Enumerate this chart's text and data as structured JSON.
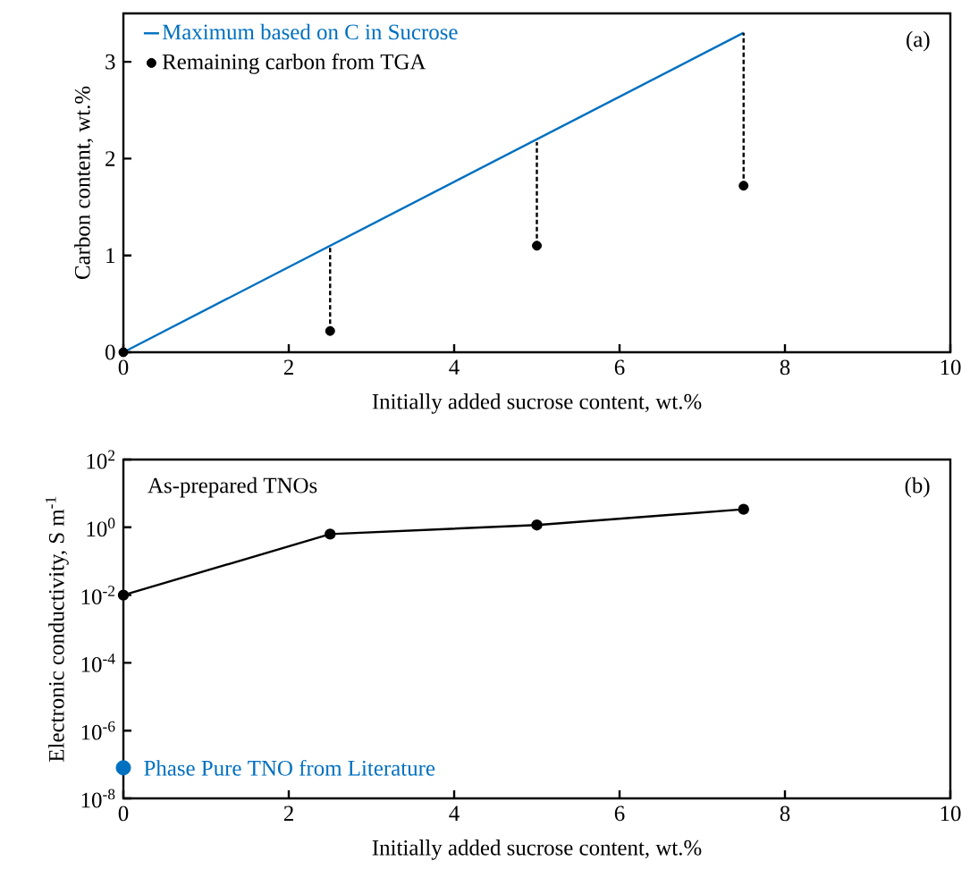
{
  "chart_data": [
    {
      "type": "scatter",
      "xlabel": "Initially added sucrose content, wt.%",
      "ylabel": "Carbon content, wt.%",
      "xlim": [
        0,
        10
      ],
      "ylim": [
        0,
        3.5
      ],
      "xticks": [
        0,
        2,
        4,
        6,
        8,
        10
      ],
      "yticks": [
        0,
        1,
        2,
        3
      ],
      "legend": "top left",
      "annotations": [
        "(a)"
      ],
      "series": [
        {
          "name": "Maximum based on C in Sucrose",
          "type": "line",
          "color": "#0070c0",
          "marker": "none",
          "line_style": "solid",
          "x": [
            0,
            7.5
          ],
          "values": [
            0,
            3.3
          ]
        },
        {
          "name": "Remaining carbon from TGA",
          "color": "#000000",
          "marker": "circle",
          "x": [
            0,
            2.5,
            5,
            7.5
          ],
          "values": [
            0,
            0.22,
            1.1,
            1.72
          ]
        },
        {
          "type": "line",
          "color": "#000000",
          "marker": "none",
          "line_style": "dashed",
          "x": [
            2.5,
            2.5
          ],
          "values": [
            0.22,
            1.08
          ]
        },
        {
          "type": "line",
          "color": "#000000",
          "marker": "none",
          "line_style": "dashed",
          "x": [
            5,
            5
          ],
          "values": [
            1.1,
            2.17
          ]
        },
        {
          "type": "line",
          "color": "#000000",
          "marker": "none",
          "line_style": "dashed",
          "x": [
            7.5,
            7.5
          ],
          "values": [
            1.72,
            3.3
          ]
        }
      ]
    },
    {
      "type": "line",
      "xlabel": "Initially added sucrose content, wt.%",
      "ylabel": "Electronic conductivity, S m$^{-1}$",
      "log": "y",
      "xlim": [
        0,
        10
      ],
      "ylim": [
        1e-08,
        100
      ],
      "xticks": [
        0,
        2,
        4,
        6,
        8,
        10
      ],
      "yticks": [
        {
          "value": 1e-08,
          "label": "10$^{-8}$"
        },
        {
          "value": 1e-06,
          "label": "10$^{-6}$"
        },
        {
          "value": 0.0001,
          "label": "10$^{-4}$"
        },
        {
          "value": 0.01,
          "label": "10$^{-2}$"
        },
        {
          "value": 1,
          "label": "10$^{0}$"
        },
        {
          "value": 100,
          "label": "10$^{2}$"
        }
      ],
      "legend": false,
      "annotations": [
        "As-prepared TNOs",
        "(b)"
      ],
      "series": [
        {
          "color": "#000000",
          "marker": "circle",
          "line_style": "solid",
          "x": [
            0,
            2.5,
            5,
            7.5
          ],
          "values": [
            0.01,
            0.63,
            1.17,
            3.4
          ]
        },
        {
          "name": "Phase Pure TNO from Literature",
          "type": "scatter",
          "color": "#0070c0",
          "marker": "circle",
          "x": [
            0
          ],
          "values": [
            8e-08
          ]
        }
      ]
    }
  ]
}
